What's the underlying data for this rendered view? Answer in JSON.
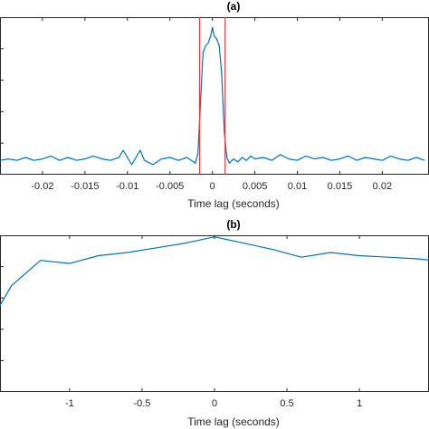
{
  "chart_data": [
    {
      "type": "line",
      "title": "(a)",
      "xlabel": "Time lag (seconds)",
      "ylabel": "",
      "xlim": [
        -0.025,
        0.0255
      ],
      "ylim": [
        -0.1,
        1.0
      ],
      "xticks": [
        -0.02,
        -0.015,
        -0.01,
        -0.005,
        0,
        0.005,
        0.01,
        0.015,
        0.02
      ],
      "xtick_labels": [
        "-0.02",
        "-0.015",
        "-0.01",
        "-0.005",
        "0",
        "0.005",
        "0.01",
        "0.015",
        "0.02"
      ],
      "grid": false,
      "series": [
        {
          "color": "#0072bd",
          "x": [
            -0.025,
            -0.024,
            -0.023,
            -0.022,
            -0.021,
            -0.02,
            -0.019,
            -0.018,
            -0.017,
            -0.016,
            -0.015,
            -0.014,
            -0.013,
            -0.012,
            -0.011,
            -0.0105,
            -0.01,
            -0.0095,
            -0.009,
            -0.0085,
            -0.008,
            -0.007,
            -0.006,
            -0.005,
            -0.004,
            -0.003,
            -0.002,
            -0.0017,
            -0.0014,
            -0.0011,
            -0.0008,
            -0.0005,
            -0.0002,
            0,
            0.0002,
            0.0005,
            0.0008,
            0.0011,
            0.0014,
            0.0017,
            0.002,
            0.0025,
            0.003,
            0.0035,
            0.004,
            0.0045,
            0.005,
            0.006,
            0.007,
            0.008,
            0.009,
            0.01,
            0.011,
            0.012,
            0.013,
            0.014,
            0.015,
            0.016,
            0.017,
            0.018,
            0.019,
            0.02,
            0.021,
            0.022,
            0.023,
            0.024,
            0.025
          ],
          "y": [
            0.0,
            0.01,
            0.0,
            0.02,
            0.0,
            0.01,
            0.03,
            0.0,
            0.02,
            0.0,
            0.01,
            0.03,
            0.01,
            0.0,
            0.02,
            0.07,
            0.02,
            -0.03,
            0.02,
            0.07,
            0.0,
            -0.03,
            0.01,
            0.02,
            0.0,
            0.02,
            -0.02,
            0.05,
            0.4,
            0.75,
            0.8,
            0.82,
            0.87,
            0.93,
            0.87,
            0.85,
            0.8,
            0.6,
            0.2,
            0.02,
            -0.02,
            0.01,
            -0.01,
            0.02,
            0.0,
            0.03,
            0.01,
            0.02,
            0.0,
            0.04,
            0.01,
            0.0,
            0.03,
            0.01,
            0.02,
            0.0,
            0.01,
            0.03,
            0.0,
            0.02,
            0.01,
            0.0,
            0.03,
            0.01,
            0.0,
            0.02,
            0.0
          ]
        },
        {
          "color": "#e83a3a",
          "type": "vline",
          "x": [
            -0.0015,
            0.0015
          ]
        }
      ]
    },
    {
      "type": "line",
      "title": "(b)",
      "xlabel": "Time lag (seconds)",
      "ylabel": "",
      "xlim": [
        -1.48,
        1.48
      ],
      "ylim": [
        0.0,
        1.0
      ],
      "xticks": [
        -1,
        -0.5,
        0,
        0.5,
        1
      ],
      "xtick_labels": [
        "-1",
        "-0.5",
        "0",
        "0.5",
        "1"
      ],
      "grid": false,
      "series": [
        {
          "color": "#0072bd",
          "x": [
            -1.5,
            -1.4,
            -1.2,
            -1.0,
            -0.8,
            -0.6,
            -0.4,
            -0.2,
            0.0,
            0.2,
            0.4,
            0.6,
            0.8,
            1.0,
            1.2,
            1.4,
            1.5
          ],
          "y": [
            0.52,
            0.68,
            0.84,
            0.82,
            0.87,
            0.89,
            0.92,
            0.95,
            0.99,
            0.95,
            0.91,
            0.86,
            0.89,
            0.87,
            0.86,
            0.85,
            0.84
          ]
        }
      ]
    }
  ]
}
